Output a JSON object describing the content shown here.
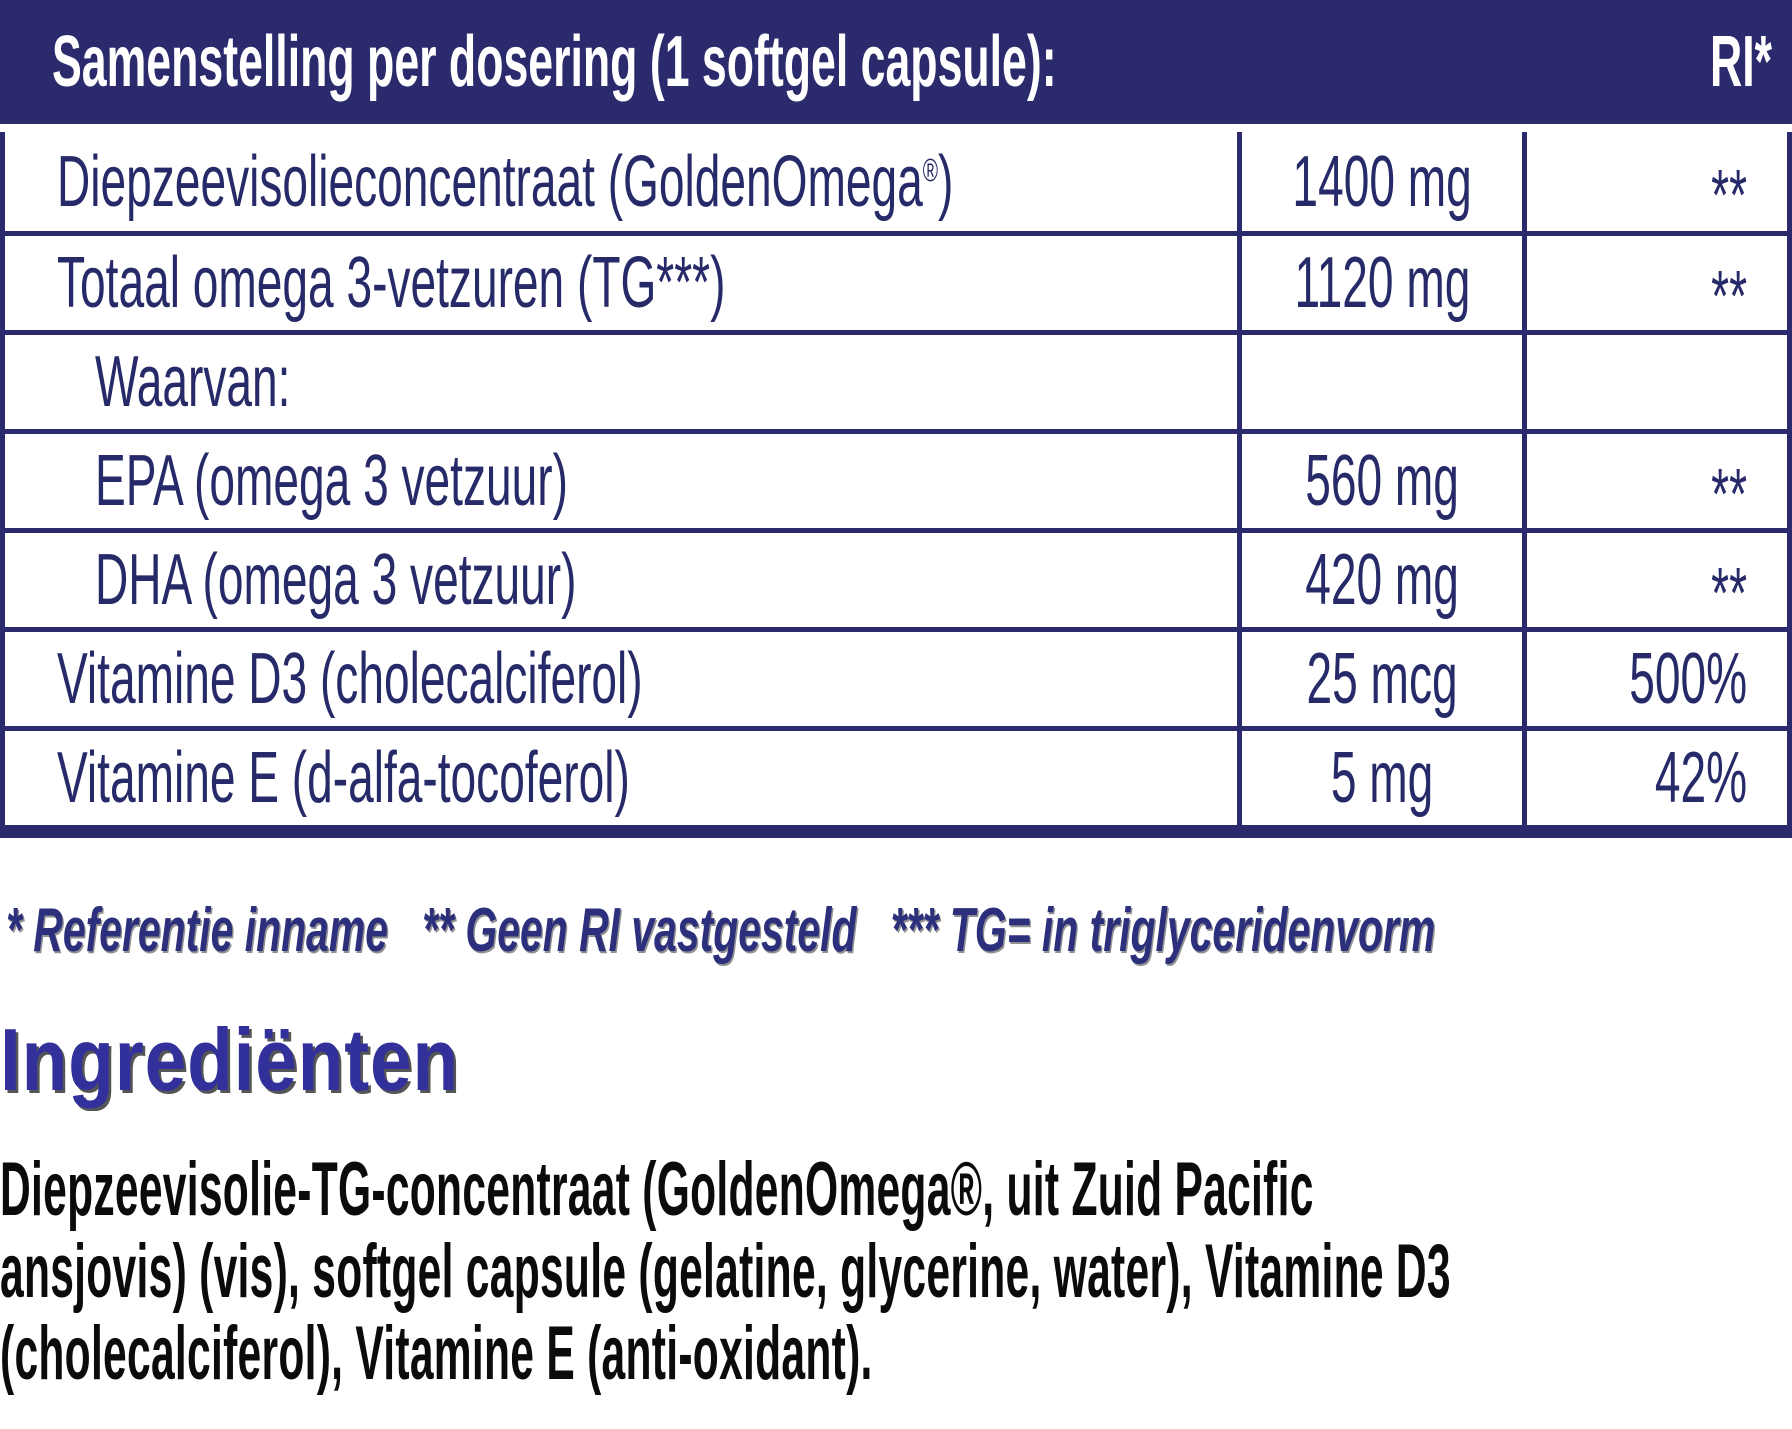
{
  "colors": {
    "navy": "#2a2a6c",
    "table-text": "#272a68",
    "footnote-color": "#2c2f7b",
    "indigo": "#32309b",
    "ink": "#0b0b0b"
  },
  "header": {
    "title": "Samenstelling per dosering (1 softgel capsule):",
    "ri": "RI*"
  },
  "table": {
    "rows": [
      {
        "name": "Diepzeevisolieconcentraat (GoldenOmega",
        "reg": "®",
        "close": ")",
        "amount": "1400 mg",
        "ri": "**"
      },
      {
        "name": "Totaal omega 3-vetzuren (TG***)",
        "amount": "1120 mg",
        "ri": "**"
      },
      {
        "name": "Waarvan:",
        "amount": "",
        "ri": ""
      },
      {
        "name": "EPA (omega 3 vetzuur)",
        "amount": "560 mg",
        "ri": "**"
      },
      {
        "name": "DHA (omega 3 vetzuur)",
        "amount": "420 mg",
        "ri": "**"
      },
      {
        "name": "Vitamine D3 (cholecalciferol)",
        "amount": "25 mcg",
        "ri": "500%"
      },
      {
        "name": "Vitamine E (d-alfa-tocoferol)",
        "amount": "5 mg",
        "ri": "42%"
      }
    ]
  },
  "footnote": {
    "text": "* Referentie inname   ** Geen RI vastgesteld   *** TG= in triglyceridenvorm"
  },
  "ingredients": {
    "heading": "Ingrediënten",
    "lines": [
      "Diepzeevisolie-TG-concentraat (GoldenOmega®, uit Zuid Pacific",
      "ansjovis) (vis), softgel capsule (gelatine, glycerine, water), Vitamine D3",
      "(cholecalciferol), Vitamine E (anti-oxidant)."
    ]
  }
}
